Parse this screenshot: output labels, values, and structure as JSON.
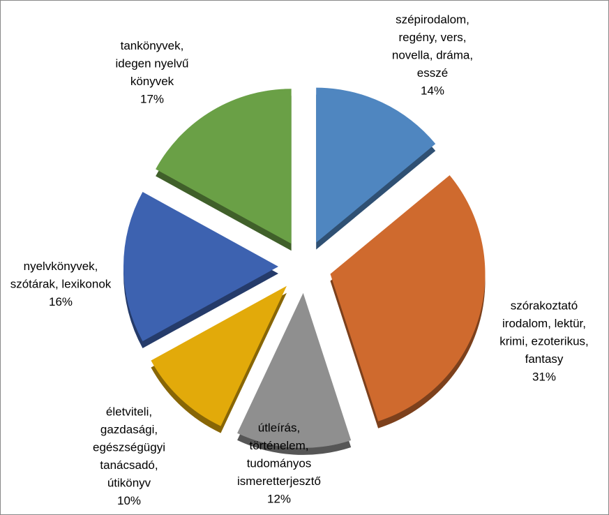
{
  "chart_data": {
    "type": "pie",
    "categories": [
      [
        "szépirodalom,",
        "regény, vers,",
        "novella, dráma,",
        "esszé"
      ],
      [
        "szórakoztató",
        "irodalom, lektür,",
        "krimi, ezoterikus,",
        "fantasy"
      ],
      [
        "útleírás,",
        "történelem,",
        "tudományos",
        "ismeretterjesztő"
      ],
      [
        "életviteli,",
        "gazdasági,",
        "egészségügyi",
        "tanácsadó,",
        "útikönyv"
      ],
      [
        "nyelvkönyvek,",
        "szótárak, lexikonok"
      ],
      [
        "tankönyvek,",
        "idegen nyelvű",
        "könyvek"
      ]
    ],
    "values": [
      14,
      31,
      12,
      10,
      16,
      17
    ],
    "value_labels": [
      "14%",
      "31%",
      "12%",
      "10%",
      "16%",
      "17%"
    ],
    "colors": [
      "#4f86c0",
      "#cf6a2e",
      "#8f8f8f",
      "#e2aa0a",
      "#3d62b0",
      "#6aa046"
    ]
  }
}
